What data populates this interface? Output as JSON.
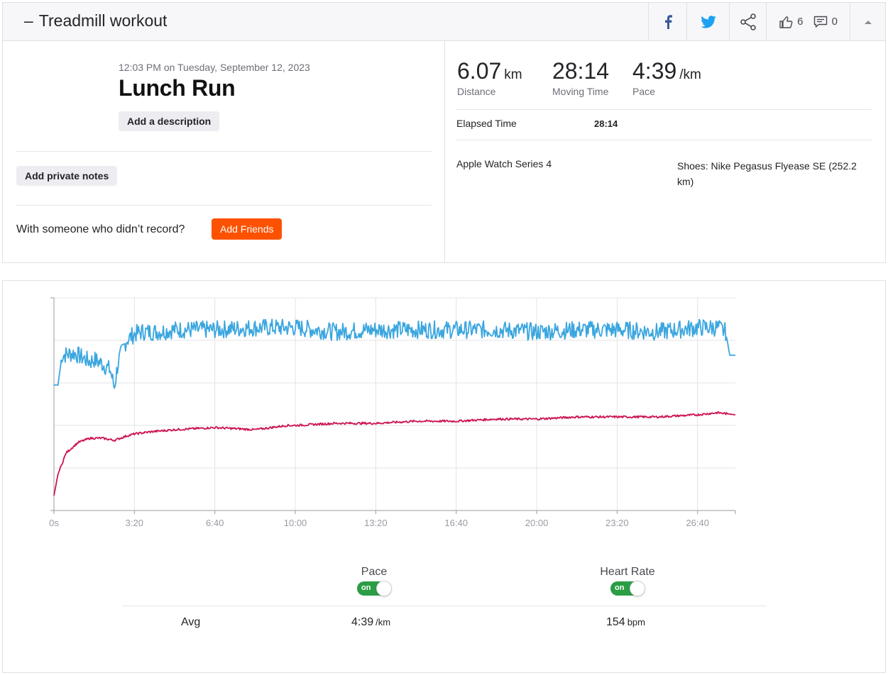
{
  "header": {
    "collapse_glyph": "–",
    "title": "Treadmill workout",
    "kudos_count": "6",
    "comment_count": "0",
    "icons": [
      "facebook-icon",
      "twitter-icon",
      "share-icon",
      "thumbs-up-icon",
      "comment-icon",
      "caret-up-icon"
    ],
    "colors": {
      "facebook": "#3b5998",
      "twitter": "#1da1f2"
    }
  },
  "activity": {
    "datetime": "12:03 PM on Tuesday, September 12, 2023",
    "name": "Lunch Run",
    "add_description_label": "Add a description",
    "add_private_notes_label": "Add private notes",
    "with_someone_text": "With someone who didn’t record?",
    "add_friends_label": "Add Friends"
  },
  "stats": {
    "distance": {
      "value": "6.07",
      "unit": "km",
      "label": "Distance"
    },
    "moving_time": {
      "value": "28:14",
      "label": "Moving Time"
    },
    "pace": {
      "value": "4:39",
      "unit": "/km",
      "label": "Pace"
    },
    "elapsed_label": "Elapsed Time",
    "elapsed_value": "28:14",
    "device": "Apple Watch Series 4",
    "shoes": "Shoes: Nike Pegasus Flyease SE (252.2 km)"
  },
  "chart_data": {
    "type": "line",
    "x_tick_labels": [
      "0s",
      "3:20",
      "6:40",
      "10:00",
      "13:20",
      "16:40",
      "20:00",
      "23:20",
      "26:40"
    ],
    "x_tick_seconds": [
      0,
      200,
      400,
      600,
      800,
      1000,
      1200,
      1400,
      1600
    ],
    "xlim_seconds": [
      0,
      1694
    ],
    "grid": true,
    "y_tick_labels_shown": false,
    "series": [
      {
        "name": "Pace",
        "color": "#3ba6de",
        "y_scale": "relative 0-100 (no printed axis)",
        "x": [
          0,
          10,
          20,
          50,
          70,
          90,
          100,
          120,
          140,
          150,
          160,
          170,
          180,
          200,
          220,
          260,
          300,
          400,
          500,
          600,
          700,
          800,
          900,
          1000,
          1100,
          1200,
          1300,
          1400,
          1500,
          1600,
          1650,
          1670,
          1680,
          1694
        ],
        "values": [
          59,
          59,
          73,
          74,
          72,
          70,
          71,
          69,
          66,
          58,
          70,
          75,
          80,
          83,
          84,
          84,
          85,
          85,
          86,
          86,
          84,
          85,
          85,
          85,
          85,
          84,
          85,
          85,
          84,
          86,
          86,
          84,
          73,
          73
        ]
      },
      {
        "name": "Heart Rate",
        "color": "#cc1452",
        "y_scale": "relative 0-100 (no printed axis)",
        "x": [
          0,
          10,
          30,
          60,
          90,
          120,
          150,
          180,
          200,
          240,
          300,
          400,
          500,
          580,
          600,
          700,
          800,
          900,
          1000,
          1100,
          1200,
          1300,
          1400,
          1500,
          1600,
          1650,
          1694
        ],
        "values": [
          7,
          17,
          27,
          32,
          34,
          34,
          33,
          35,
          36,
          37,
          38,
          39,
          38,
          40,
          40,
          41,
          41,
          42,
          42,
          43,
          43,
          44,
          44,
          44,
          45,
          46,
          45
        ]
      }
    ]
  },
  "legend": {
    "pace": {
      "label": "Pace",
      "toggle": "on"
    },
    "heart_rate": {
      "label": "Heart Rate",
      "toggle": "on"
    }
  },
  "averages": {
    "label": "Avg",
    "pace_value": "4:39",
    "pace_unit": "/km",
    "hr_value": "154",
    "hr_unit": "bpm"
  }
}
